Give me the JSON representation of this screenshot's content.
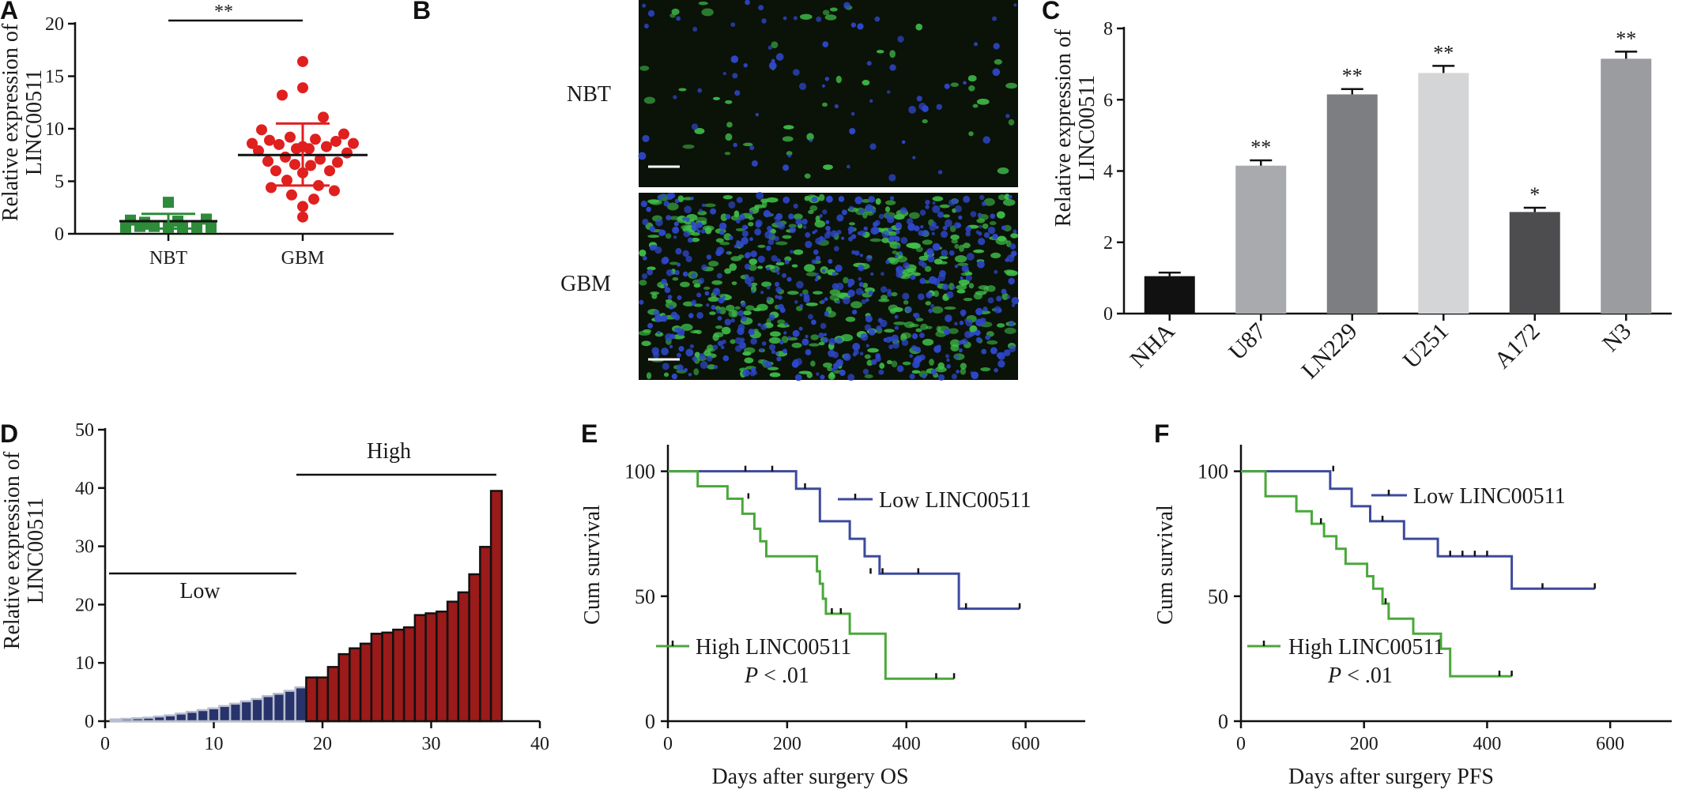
{
  "panels": {
    "A": {
      "letter": "A",
      "chart_data": {
        "type": "scatter",
        "ylabel_line1": "Relative expression of",
        "ylabel_line2": "LINC00511",
        "ylim": [
          0,
          20
        ],
        "yticks": [
          "0",
          "5",
          "10",
          "15",
          "20"
        ],
        "categories": [
          "NBT",
          "GBM"
        ],
        "significance": "**",
        "series": [
          {
            "group": "NBT",
            "color": "#2e8b3a",
            "marker": "square",
            "mean": 1.2,
            "sd_low": 0.5,
            "sd_high": 1.9,
            "values": [
              3.0,
              1.3,
              1.2,
              1.4,
              1.1,
              0.7,
              0.7,
              0.6,
              0.6,
              0.6,
              0.6,
              0.6
            ]
          },
          {
            "group": "GBM",
            "color": "#e01f1f",
            "marker": "circle",
            "mean": 7.5,
            "sd_low": 4.6,
            "sd_high": 10.5,
            "values": [
              16.4,
              13.9,
              13.2,
              11.1,
              9.9,
              9.5,
              9.2,
              9.0,
              8.9,
              8.8,
              8.6,
              8.6,
              8.5,
              8.3,
              8.3,
              8.1,
              8.1,
              7.9,
              7.7,
              7.3,
              7.1,
              6.9,
              6.8,
              6.6,
              6.5,
              6.0,
              6.0,
              5.8,
              5.1,
              4.6,
              4.4,
              4.1,
              3.7,
              3.3,
              2.6,
              1.6
            ]
          }
        ]
      }
    },
    "B": {
      "letter": "B",
      "top_label": "NBT",
      "bottom_label": "GBM",
      "image": {
        "bg": "#0b1208",
        "nuclei": "#2e47c9",
        "signal": "#3fbf4a"
      }
    },
    "C": {
      "letter": "C",
      "chart_data": {
        "type": "bar",
        "ylabel_line1": "Relative expression of",
        "ylabel_line2": "LINC00511",
        "ylim": [
          0,
          8
        ],
        "yticks": [
          "0",
          "2",
          "4",
          "6",
          "8"
        ],
        "categories": [
          "NHA",
          "U87",
          "LN229",
          "U251",
          "A172",
          "N3"
        ],
        "values": [
          1.05,
          4.15,
          6.15,
          6.75,
          2.85,
          7.15
        ],
        "errors": [
          0.1,
          0.15,
          0.15,
          0.2,
          0.12,
          0.2
        ],
        "significance": [
          "",
          "**",
          "**",
          "**",
          "*",
          "**"
        ],
        "colors": [
          "#111111",
          "#a8aaad",
          "#7c7e81",
          "#d4d5d7",
          "#4d4d4f",
          "#9a9c9f"
        ]
      }
    },
    "D": {
      "letter": "D",
      "chart_data": {
        "type": "bar",
        "ylabel_line1": "Relative expression of",
        "ylabel_line2": "LINC00511",
        "xlim": [
          0,
          40
        ],
        "ylim": [
          0,
          50
        ],
        "xticks": [
          "0",
          "10",
          "20",
          "30",
          "40"
        ],
        "yticks": [
          "0",
          "10",
          "20",
          "30",
          "40",
          "50"
        ],
        "group_low": "Low",
        "group_high": "High",
        "low_color": "#27336a",
        "high_color": "#9b1a1a",
        "low_values": [
          0.3,
          0.4,
          0.5,
          0.6,
          0.8,
          1.0,
          1.3,
          1.6,
          1.9,
          2.2,
          2.6,
          3.0,
          3.4,
          3.8,
          4.3,
          4.7,
          5.2,
          5.8
        ],
        "high_values": [
          7.5,
          7.5,
          9.3,
          11.5,
          12.5,
          13.3,
          15.0,
          15.2,
          15.7,
          16.1,
          18.2,
          18.5,
          18.8,
          20.5,
          22.1,
          25.2,
          29.9,
          39.5
        ]
      }
    },
    "E": {
      "letter": "E",
      "chart_data": {
        "type": "line",
        "xlabel": "Days after surgery OS",
        "ylabel": "Cum survival",
        "xlim": [
          0,
          700
        ],
        "ylim": [
          0,
          110
        ],
        "xticks": [
          "0",
          "200",
          "400",
          "600"
        ],
        "yticks": [
          "0",
          "50",
          "100"
        ],
        "pvalue_p": "P",
        "pvalue_rest": " < .01",
        "series": [
          {
            "name": "Low LINC00511",
            "color": "#3d4a9c",
            "steps": [
              [
                0,
                100
              ],
              [
                215,
                100
              ],
              [
                215,
                93
              ],
              [
                255,
                93
              ],
              [
                255,
                80
              ],
              [
                305,
                80
              ],
              [
                305,
                73
              ],
              [
                330,
                73
              ],
              [
                330,
                66
              ],
              [
                355,
                66
              ],
              [
                355,
                59
              ],
              [
                488,
                59
              ],
              [
                488,
                45
              ],
              [
                590,
                45
              ]
            ],
            "censors": [
              [
                130,
                100
              ],
              [
                175,
                100
              ],
              [
                230,
                93
              ],
              [
                340,
                59
              ],
              [
                360,
                59
              ],
              [
                420,
                59
              ],
              [
                500,
                45
              ],
              [
                590,
                45
              ]
            ]
          },
          {
            "name": "High LINC00511",
            "color": "#4aa83a",
            "steps": [
              [
                0,
                100
              ],
              [
                50,
                100
              ],
              [
                50,
                94
              ],
              [
                100,
                94
              ],
              [
                100,
                89
              ],
              [
                125,
                89
              ],
              [
                125,
                83
              ],
              [
                145,
                83
              ],
              [
                145,
                77
              ],
              [
                155,
                77
              ],
              [
                155,
                72
              ],
              [
                165,
                72
              ],
              [
                165,
                66
              ],
              [
                250,
                66
              ],
              [
                250,
                60
              ],
              [
                255,
                60
              ],
              [
                255,
                55
              ],
              [
                260,
                55
              ],
              [
                260,
                49
              ],
              [
                265,
                49
              ],
              [
                265,
                43
              ],
              [
                305,
                43
              ],
              [
                305,
                35
              ],
              [
                365,
                35
              ],
              [
                365,
                17
              ],
              [
                480,
                17
              ]
            ],
            "censors": [
              [
                135,
                89
              ],
              [
                275,
                43
              ],
              [
                290,
                43
              ],
              [
                450,
                17
              ],
              [
                480,
                17
              ]
            ]
          }
        ]
      }
    },
    "F": {
      "letter": "F",
      "chart_data": {
        "type": "line",
        "xlabel": "Days after surgery PFS",
        "ylabel": "Cum survival",
        "xlim": [
          0,
          700
        ],
        "ylim": [
          0,
          110
        ],
        "xticks": [
          "0",
          "200",
          "400",
          "600"
        ],
        "yticks": [
          "0",
          "50",
          "100"
        ],
        "pvalue_p": "P",
        "pvalue_rest": " < .01",
        "series": [
          {
            "name": "Low LINC00511",
            "color": "#3d4a9c",
            "steps": [
              [
                0,
                100
              ],
              [
                145,
                100
              ],
              [
                145,
                93
              ],
              [
                180,
                93
              ],
              [
                180,
                86
              ],
              [
                210,
                86
              ],
              [
                210,
                80
              ],
              [
                265,
                80
              ],
              [
                265,
                73
              ],
              [
                320,
                73
              ],
              [
                320,
                66
              ],
              [
                440,
                66
              ],
              [
                440,
                53
              ],
              [
                575,
                53
              ]
            ],
            "censors": [
              [
                150,
                100
              ],
              [
                230,
                80
              ],
              [
                340,
                66
              ],
              [
                360,
                66
              ],
              [
                380,
                66
              ],
              [
                400,
                66
              ],
              [
                490,
                53
              ],
              [
                575,
                53
              ]
            ]
          },
          {
            "name": "High LINC00511",
            "color": "#4aa83a",
            "steps": [
              [
                0,
                100
              ],
              [
                40,
                100
              ],
              [
                40,
                90
              ],
              [
                90,
                90
              ],
              [
                90,
                84
              ],
              [
                115,
                84
              ],
              [
                115,
                79
              ],
              [
                135,
                79
              ],
              [
                135,
                74
              ],
              [
                155,
                74
              ],
              [
                155,
                69
              ],
              [
                170,
                69
              ],
              [
                170,
                63
              ],
              [
                205,
                63
              ],
              [
                205,
                58
              ],
              [
                215,
                58
              ],
              [
                215,
                53
              ],
              [
                230,
                53
              ],
              [
                230,
                47
              ],
              [
                240,
                47
              ],
              [
                240,
                41
              ],
              [
                280,
                41
              ],
              [
                280,
                35
              ],
              [
                325,
                35
              ],
              [
                325,
                29
              ],
              [
                340,
                29
              ],
              [
                340,
                18
              ],
              [
                440,
                18
              ]
            ],
            "censors": [
              [
                130,
                79
              ],
              [
                235,
                47
              ],
              [
                420,
                18
              ],
              [
                440,
                18
              ]
            ]
          }
        ]
      }
    }
  }
}
